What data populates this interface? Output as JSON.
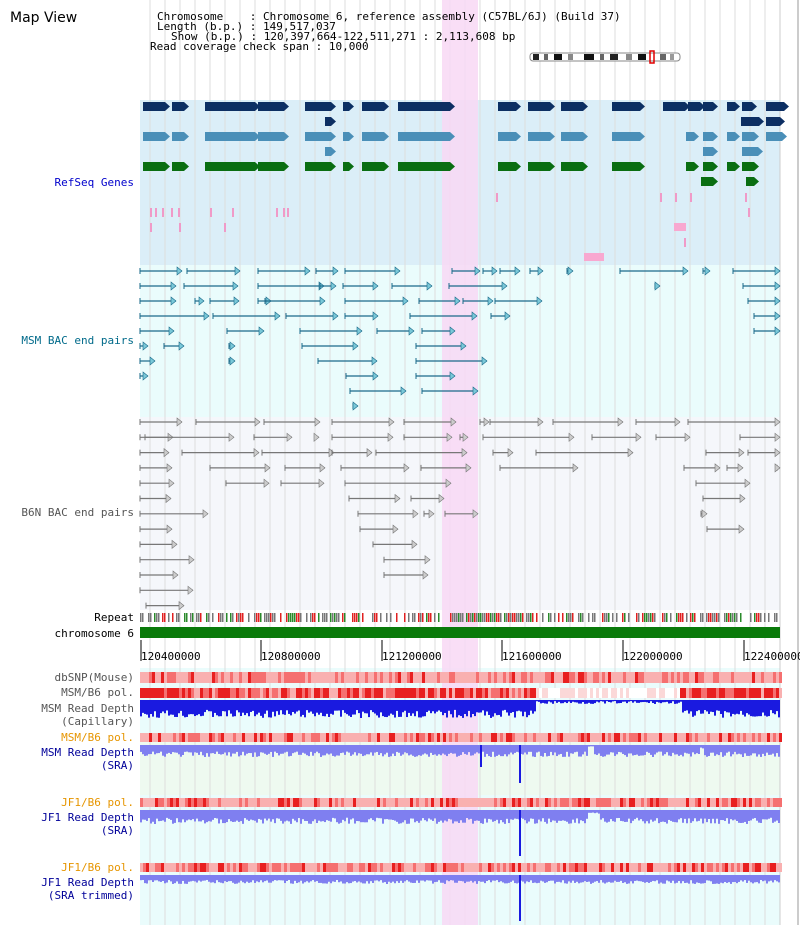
{
  "view": {
    "title": "Map View",
    "info": {
      "chromosome_label": "Chromosome",
      "chromosome_value": "Chromosome 6, reference assembly (C57BL/6J) (Build 37)",
      "length_label": "Length (b.p.)",
      "length_value": "149,517,037",
      "show_label": "Show (b.p.)",
      "show_value": "120,397,664-122,511,271 : 2,113,608 bp",
      "coverage_label": "Read coverage check span",
      "coverage_value": "10,000"
    }
  },
  "tracks": {
    "refseq": "RefSeq Genes",
    "msm_bac": "MSM BAC end pairs",
    "b6n_bac": "B6N BAC end pairs",
    "repeat": "Repeat",
    "chromosome": "chromosome 6",
    "dbsnp": "dbSNP(Mouse)",
    "msm_b6_pol_1": "MSM/B6 pol.",
    "msm_depth_cap_1": "MSM Read Depth",
    "msm_depth_cap_2": "(Capillary)",
    "msm_b6_pol_2": "MSM/B6 pol.",
    "msm_depth_sra_1": "MSM Read Depth",
    "msm_depth_sra_2": "(SRA)",
    "jf1_b6_pol_1": "JF1/B6 pol.",
    "jf1_depth_sra_1": "JF1 Read Depth",
    "jf1_depth_sra_2": "(SRA)",
    "jf1_b6_pol_2": "JF1/B6 pol.",
    "jf1_depth_trim_1": "JF1 Read Depth",
    "jf1_depth_trim_2": "(SRA trimmed)"
  },
  "axis": {
    "ticks": [
      "120400000",
      "120800000",
      "121200000",
      "121600000",
      "122000000",
      "122400000"
    ]
  },
  "colors": {
    "refseq_dark": "#0d2f63",
    "refseq_mid": "#4a8fb8",
    "refseq_green": "#0a6e12",
    "refseq_bg": "#dbeef8",
    "bac_bg": "#eafcfc",
    "b6n_bg": "#f5f7fb",
    "highlight": "#f8d8f4",
    "chromosome_bar": "#0a7a0a",
    "depth_dark": "#1a1ae0",
    "depth_light": "#7f7ff0"
  }
}
